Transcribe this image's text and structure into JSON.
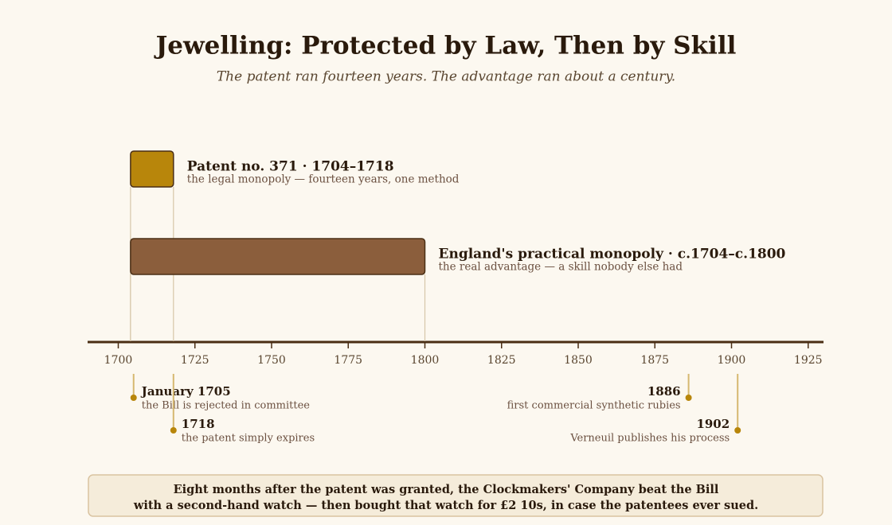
{
  "chart_data": {
    "type": "timeline",
    "title": "Jewelling: Protected by Law, Then by Skill",
    "subtitle": "The patent ran fourteen years. The advantage ran about a century.",
    "xlim": [
      1690,
      1930
    ],
    "xticks": [
      1700,
      1725,
      1750,
      1775,
      1800,
      1825,
      1850,
      1875,
      1900,
      1925
    ],
    "bars": [
      {
        "label": "Patent no. 371 · 1704–1718",
        "note": "the legal monopoly — fourteen years, one method",
        "start": 1704,
        "end": 1718,
        "color": "#b8860b"
      },
      {
        "label": "England's practical monopoly · c.1704–c.1800",
        "note": "the real advantage — a skill nobody else had",
        "start": 1704,
        "end": 1800,
        "color": "#8b5e3c"
      }
    ],
    "events": [
      {
        "label": "January 1705",
        "note": "the Bill is rejected in committee",
        "year": 1705
      },
      {
        "label": "1718",
        "note": "the patent simply expires",
        "year": 1718
      },
      {
        "label": "1886",
        "note": "first commercial synthetic rubies",
        "year": 1886
      },
      {
        "label": "1902",
        "note": "Verneuil publishes his process",
        "year": 1902
      }
    ],
    "footnote": [
      "Eight months after the patent was granted, the Clockmakers' Company beat the Bill",
      "with a second-hand watch — then bought that watch for £2 10s, in case the patentees ever sued."
    ]
  }
}
